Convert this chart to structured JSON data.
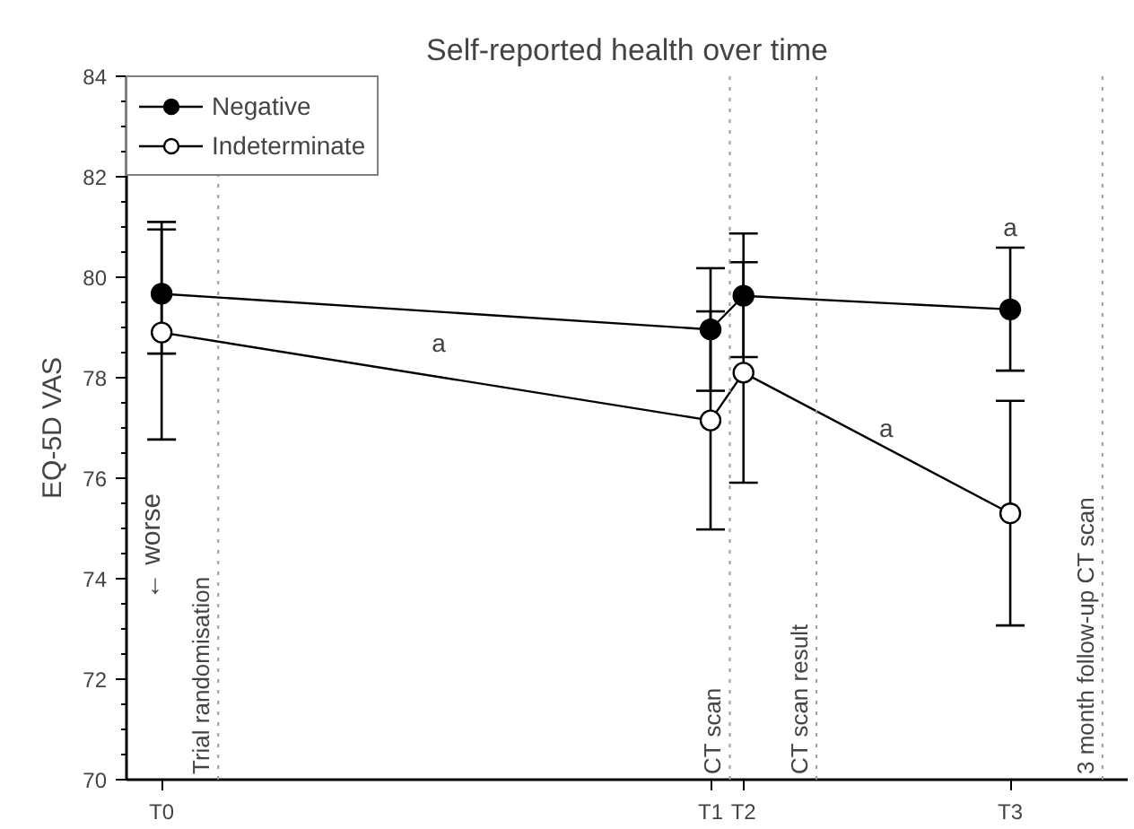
{
  "chart_data": {
    "type": "line",
    "title": "Self-reported health over time",
    "ylabel": "EQ-5D VAS",
    "categories": [
      "T0",
      "T1",
      "T2",
      "T3"
    ],
    "ylim": [
      70,
      84
    ],
    "yticks": [
      70,
      72,
      74,
      76,
      78,
      80,
      82,
      84
    ],
    "series": [
      {
        "name": "Negative",
        "color": "#000000",
        "values": [
          79.67,
          78.96,
          79.63,
          79.36
        ],
        "errors": [
          [
            78.48,
            80.95
          ],
          [
            77.74,
            80.18
          ],
          [
            78.41,
            80.87
          ],
          [
            78.14,
            80.59
          ]
        ]
      },
      {
        "name": "Indeterminate",
        "color": "#000000",
        "values": [
          78.9,
          77.15,
          78.1,
          75.3
        ],
        "errors": [
          [
            76.77,
            81.1
          ],
          [
            74.98,
            79.32
          ],
          [
            75.91,
            80.3
          ],
          [
            73.07,
            77.54
          ]
        ]
      }
    ],
    "annotations": [
      "Trial randomisation",
      "CT scan",
      "CT scan result",
      "3 month follow-up CT scan",
      "a",
      "a",
      "a",
      "← worse"
    ],
    "marker": "circle",
    "line_style": "solid",
    "grid": false,
    "legend": "top left"
  }
}
